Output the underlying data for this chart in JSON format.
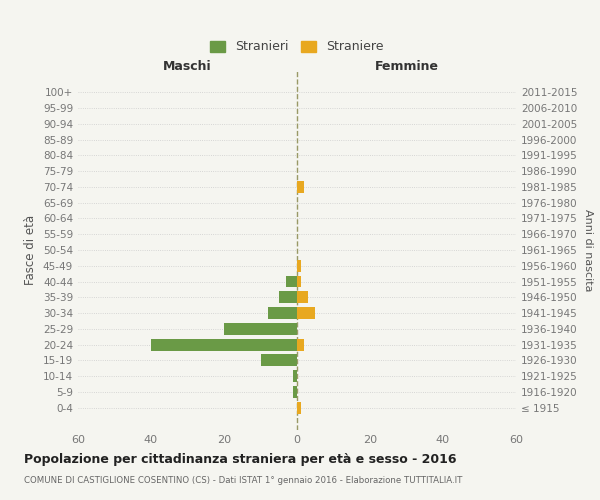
{
  "age_groups": [
    "100+",
    "95-99",
    "90-94",
    "85-89",
    "80-84",
    "75-79",
    "70-74",
    "65-69",
    "60-64",
    "55-59",
    "50-54",
    "45-49",
    "40-44",
    "35-39",
    "30-34",
    "25-29",
    "20-24",
    "15-19",
    "10-14",
    "5-9",
    "0-4"
  ],
  "birth_years": [
    "≤ 1915",
    "1916-1920",
    "1921-1925",
    "1926-1930",
    "1931-1935",
    "1936-1940",
    "1941-1945",
    "1946-1950",
    "1951-1955",
    "1956-1960",
    "1961-1965",
    "1966-1970",
    "1971-1975",
    "1976-1980",
    "1981-1985",
    "1986-1990",
    "1991-1995",
    "1996-2000",
    "2001-2005",
    "2006-2010",
    "2011-2015"
  ],
  "males": [
    0,
    0,
    0,
    0,
    0,
    0,
    0,
    0,
    0,
    0,
    0,
    0,
    3,
    5,
    8,
    20,
    40,
    10,
    1,
    1,
    0
  ],
  "females": [
    0,
    0,
    0,
    0,
    0,
    0,
    2,
    0,
    0,
    0,
    0,
    1,
    1,
    3,
    5,
    0,
    2,
    0,
    0,
    0,
    1
  ],
  "male_color": "#6a9a46",
  "female_color": "#e8a820",
  "male_label": "Stranieri",
  "female_label": "Straniere",
  "title": "Popolazione per cittadinanza straniera per età e sesso - 2016",
  "subtitle": "COMUNE DI CASTIGLIONE COSENTINO (CS) - Dati ISTAT 1° gennaio 2016 - Elaborazione TUTTITALIA.IT",
  "xlabel_left": "Maschi",
  "xlabel_right": "Femmine",
  "ylabel_left": "Fasce di età",
  "ylabel_right": "Anni di nascita",
  "xlim": 60,
  "background_color": "#f5f5f0",
  "grid_color": "#cccccc"
}
